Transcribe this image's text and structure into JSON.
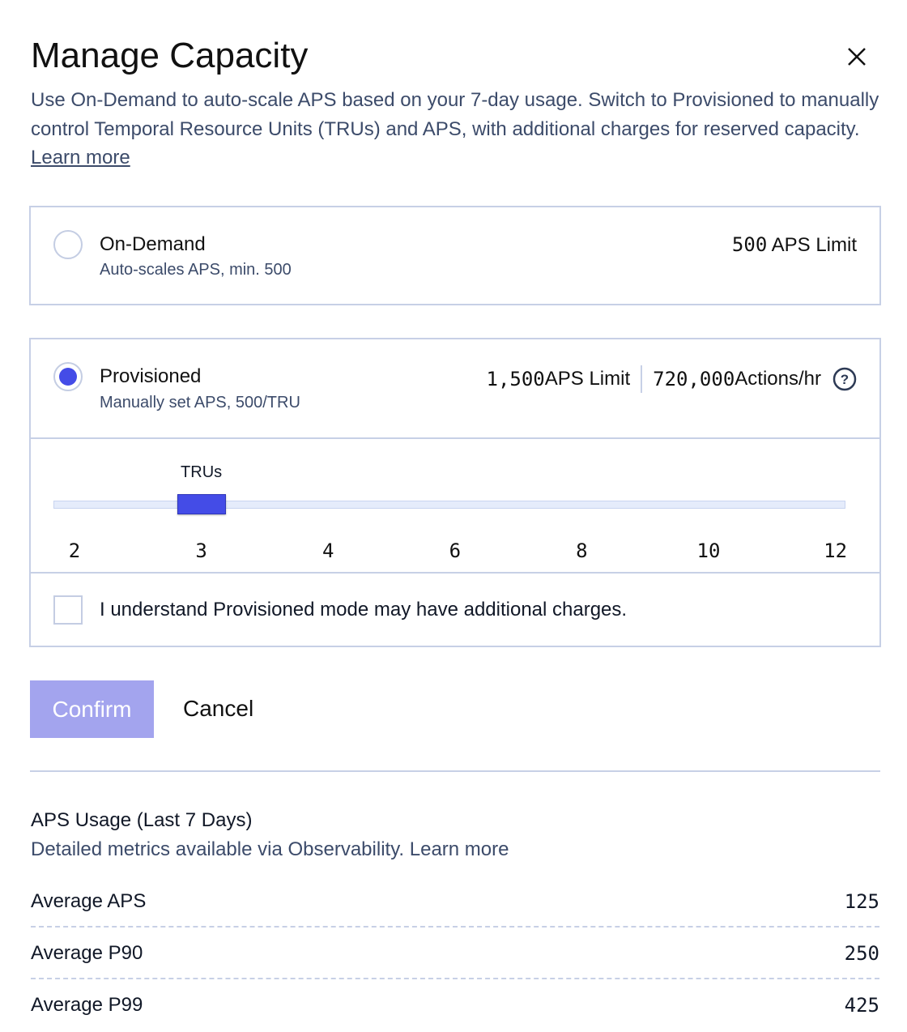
{
  "dialog": {
    "title": "Manage Capacity",
    "close_icon": "close-x-icon",
    "description": "Use On-Demand to auto-scale APS based on your 7-day usage. Switch to Provisioned to manually control Temporal Resource Units (TRUs) and APS, with additional charges for reserved capacity. ",
    "learn_more": "Learn more"
  },
  "on_demand": {
    "title": "On-Demand",
    "subtitle": "Auto-scales APS, min. 500",
    "limit_value": "500",
    "limit_label": " APS Limit",
    "selected": false
  },
  "provisioned": {
    "title": "Provisioned",
    "subtitle": "Manually set APS, 500/TRU",
    "limit_value": "1,500",
    "limit_label": " APS Limit",
    "actions_value": "720,000",
    "actions_label": " Actions/hr",
    "help_icon": "question-circle-icon",
    "selected": true,
    "slider": {
      "label": "TRUs",
      "ticks": [
        "2",
        "3",
        "4",
        "6",
        "8",
        "10",
        "12"
      ],
      "value": "3"
    },
    "acknowledge": "I understand Provisioned mode may have additional charges.",
    "acknowledged": false
  },
  "actions": {
    "confirm": "Confirm",
    "cancel": "Cancel"
  },
  "colors": {
    "accent": "#444ce7",
    "confirm_disabled": "#a3a4ee",
    "border": "#c7d0e6",
    "muted_text": "#3c4b6a"
  },
  "usage": {
    "title": "APS Usage (Last 7 Days)",
    "subtitle": "Detailed metrics available via Observability. Learn more",
    "rows": [
      {
        "label": "Average APS",
        "value": "125"
      },
      {
        "label": "Average P90",
        "value": "250"
      },
      {
        "label": "Average P99",
        "value": "425"
      }
    ]
  }
}
